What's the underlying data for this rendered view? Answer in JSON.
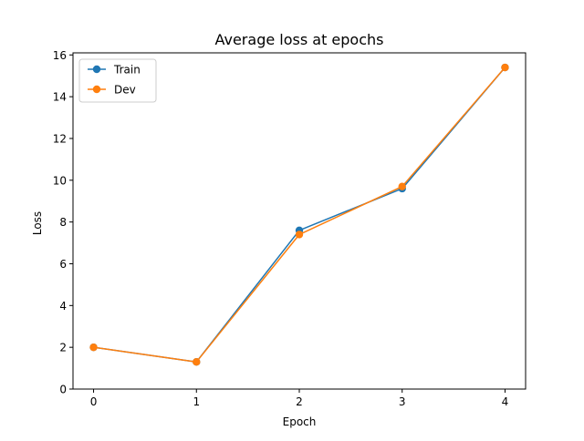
{
  "chart_data": {
    "type": "line",
    "title": "Average loss at epochs",
    "xlabel": "Epoch",
    "ylabel": "Loss",
    "x": [
      0,
      1,
      2,
      3,
      4
    ],
    "xlim": [
      -0.2,
      4.2
    ],
    "ylim": [
      0,
      16.1
    ],
    "xticks": [
      "0",
      "1",
      "2",
      "3",
      "4"
    ],
    "yticks": [
      "0",
      "2",
      "4",
      "6",
      "8",
      "10",
      "12",
      "14",
      "16"
    ],
    "grid": false,
    "legend_position": "upper-left",
    "series": [
      {
        "name": "Train",
        "color": "#1f77b4",
        "marker": "circle",
        "values": [
          2.0,
          1.3,
          7.6,
          9.6,
          15.4
        ]
      },
      {
        "name": "Dev",
        "color": "#ff7f0e",
        "marker": "circle",
        "values": [
          2.0,
          1.3,
          7.4,
          9.7,
          15.4
        ]
      }
    ]
  }
}
